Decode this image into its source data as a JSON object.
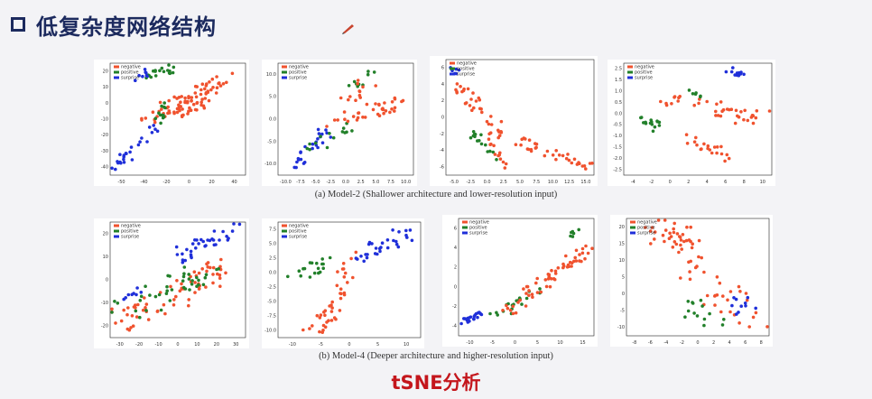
{
  "slide": {
    "title": "低复杂度网络结构",
    "caption_a": "(a) Model-2 (Shallower architecture and lower-resolution input)",
    "caption_b": "(b) Model-4 (Deeper architecture and higher-resolution input)",
    "footer": "tSNE分析",
    "title_icon": "square-bullet-icon",
    "annotation_icon": "pen-icon",
    "colors": {
      "title": "#1c2a5e",
      "footer": "#c4161c",
      "negative": "#f0522e",
      "positive": "#22802a",
      "surprise": "#1f2fd9"
    }
  },
  "chart_data": [
    {
      "type": "scatter",
      "row": "a",
      "legend": [
        "negative",
        "positive",
        "surprise"
      ],
      "legend_position": "top-left",
      "xticks": [
        "-50",
        "-40",
        "-20",
        "0",
        "20",
        "40"
      ],
      "yticks": [
        "20",
        "10",
        "0",
        "-10",
        "-20",
        "-30",
        "-40"
      ],
      "xlim": [
        -55,
        50
      ],
      "ylim": [
        -45,
        25
      ],
      "clusters": [
        {
          "series": "negative",
          "n": 60,
          "x0": -28,
          "y0": -10,
          "x1": 42,
          "y1": 18,
          "spread": 6,
          "seed": 11
        },
        {
          "series": "negative",
          "n": 30,
          "x0": -10,
          "y0": -5,
          "x1": 20,
          "y1": 0,
          "spread": 7,
          "seed": 12
        },
        {
          "series": "positive",
          "n": 18,
          "x0": -25,
          "y0": 18,
          "x1": -5,
          "y1": 22,
          "spread": 4,
          "seed": 13
        },
        {
          "series": "positive",
          "n": 12,
          "x0": -20,
          "y0": -15,
          "x1": -10,
          "y1": 0,
          "spread": 4,
          "seed": 14
        },
        {
          "series": "surprise",
          "n": 25,
          "x0": -50,
          "y0": -40,
          "x1": -20,
          "y1": -15,
          "spread": 4,
          "seed": 15
        },
        {
          "series": "surprise",
          "n": 8,
          "x0": -35,
          "y0": 15,
          "x1": -25,
          "y1": 20,
          "spread": 3,
          "seed": 16
        }
      ]
    },
    {
      "type": "scatter",
      "row": "a",
      "legend": [
        "negative",
        "positive",
        "surprise"
      ],
      "legend_position": "top-left",
      "xticks": [
        "-10.0",
        "-7.5",
        "-5.0",
        "-2.5",
        "0.0",
        "2.5",
        "5.0",
        "7.5",
        "10.0"
      ],
      "yticks": [
        "10.0",
        "5.0",
        "0.0",
        "-5.0",
        "-10.0"
      ],
      "xlim": [
        -11,
        11
      ],
      "ylim": [
        -11,
        12
      ],
      "clusters": [
        {
          "series": "surprise",
          "n": 25,
          "x0": -8,
          "y0": -9,
          "x1": -3,
          "y1": -2,
          "spread": 1.2,
          "seed": 21
        },
        {
          "series": "positive",
          "n": 14,
          "x0": -5,
          "y0": -5,
          "x1": 0,
          "y1": 0,
          "spread": 1.5,
          "seed": 22
        },
        {
          "series": "negative",
          "n": 35,
          "x0": -2,
          "y0": 0,
          "x1": 9,
          "y1": 4,
          "spread": 1.5,
          "seed": 23
        },
        {
          "series": "positive",
          "n": 10,
          "x0": 1,
          "y0": 7,
          "x1": 4,
          "y1": 10,
          "spread": 1.2,
          "seed": 24
        },
        {
          "series": "negative",
          "n": 12,
          "x0": 0,
          "y0": 4,
          "x1": 4,
          "y1": 8,
          "spread": 1.3,
          "seed": 25
        }
      ]
    },
    {
      "type": "scatter",
      "row": "a",
      "legend": [
        "negative",
        "positive",
        "surprise"
      ],
      "legend_position": "top-left",
      "xticks": [
        "-5.0",
        "-2.5",
        "0.0",
        "2.5",
        "5.0",
        "7.5",
        "10.0",
        "12.5",
        "15.0"
      ],
      "yticks": [
        "6",
        "4",
        "2",
        "0",
        "-2",
        "-4",
        "-6"
      ],
      "xlim": [
        -6,
        16
      ],
      "ylim": [
        -7,
        7
      ],
      "clusters": [
        {
          "series": "surprise",
          "n": 6,
          "x0": -5,
          "y0": 6,
          "x1": -4,
          "y1": 5,
          "spread": 0.5,
          "seed": 31
        },
        {
          "series": "negative",
          "n": 30,
          "x0": -4,
          "y0": 4,
          "x1": 2,
          "y1": -2,
          "spread": 1.2,
          "seed": 32
        },
        {
          "series": "negative",
          "n": 40,
          "x0": 2,
          "y0": -2,
          "x1": 15,
          "y1": -6,
          "spread": 1.0,
          "seed": 33
        },
        {
          "series": "positive",
          "n": 15,
          "x0": -2,
          "y0": -2,
          "x1": 2,
          "y1": -5,
          "spread": 0.8,
          "seed": 34
        },
        {
          "series": "negative",
          "n": 12,
          "x0": 1,
          "y0": -3,
          "x1": 3,
          "y1": -6,
          "spread": 0.8,
          "seed": 35
        }
      ]
    },
    {
      "type": "scatter",
      "row": "a",
      "legend": [
        "negative",
        "positive",
        "surprise"
      ],
      "legend_position": "top-left",
      "xticks": [
        "-4",
        "-2",
        "0",
        "2",
        "4",
        "6",
        "8",
        "10"
      ],
      "yticks": [
        "2.5",
        "1.5",
        "1.0",
        "0.5",
        "0.0",
        "-0.5",
        "-1.0",
        "-1.5",
        "-2.0",
        "-2.5"
      ],
      "xlim": [
        -5,
        11
      ],
      "ylim": [
        -3,
        3
      ],
      "clusters": [
        {
          "series": "surprise",
          "n": 12,
          "x0": 6,
          "y0": 2.7,
          "x1": 8,
          "y1": 2.4,
          "spread": 0.5,
          "seed": 41
        },
        {
          "series": "negative",
          "n": 40,
          "x0": 0,
          "y0": 1,
          "x1": 10,
          "y1": 0,
          "spread": 1.3,
          "seed": 42
        },
        {
          "series": "positive",
          "n": 15,
          "x0": -3,
          "y0": 0,
          "x1": -1,
          "y1": -0.5,
          "spread": 0.6,
          "seed": 43
        },
        {
          "series": "negative",
          "n": 20,
          "x0": 2,
          "y0": -1,
          "x1": 7,
          "y1": -2.3,
          "spread": 0.8,
          "seed": 44
        },
        {
          "series": "positive",
          "n": 6,
          "x0": 2,
          "y0": 1.5,
          "x1": 4,
          "y1": 1.2,
          "spread": 0.6,
          "seed": 45
        }
      ]
    },
    {
      "type": "scatter",
      "row": "b",
      "legend": [
        "negative",
        "positive",
        "surprise"
      ],
      "legend_position": "top-left",
      "xticks": [
        "-30",
        "-20",
        "-10",
        "0",
        "10",
        "20",
        "30"
      ],
      "yticks": [
        "20",
        "10",
        "0",
        "-10",
        "-20"
      ],
      "xlim": [
        -35,
        35
      ],
      "ylim": [
        -25,
        25
      ],
      "clusters": [
        {
          "series": "negative",
          "n": 70,
          "x0": -30,
          "y0": -18,
          "x1": 25,
          "y1": 5,
          "spread": 8,
          "seed": 51
        },
        {
          "series": "positive",
          "n": 40,
          "x0": -30,
          "y0": -15,
          "x1": 20,
          "y1": 5,
          "spread": 8,
          "seed": 52
        },
        {
          "series": "surprise",
          "n": 35,
          "x0": 0,
          "y0": 10,
          "x1": 30,
          "y1": 22,
          "spread": 5,
          "seed": 53
        },
        {
          "series": "surprise",
          "n": 8,
          "x0": -30,
          "y0": -10,
          "x1": -20,
          "y1": -5,
          "spread": 3,
          "seed": 54
        }
      ]
    },
    {
      "type": "scatter",
      "row": "b",
      "legend": [
        "negative",
        "positive",
        "surprise"
      ],
      "legend_position": "top-left",
      "xticks": [
        "-10",
        "-5",
        "0",
        "5",
        "10"
      ],
      "yticks": [
        "7.5",
        "5.0",
        "2.5",
        "0.0",
        "-2.5",
        "-5.0",
        "-7.5",
        "-10.0"
      ],
      "xlim": [
        -12,
        13
      ],
      "ylim": [
        -11,
        9
      ],
      "clusters": [
        {
          "series": "positive",
          "n": 18,
          "x0": -10,
          "y0": -1,
          "x1": -3,
          "y1": 2,
          "spread": 1.5,
          "seed": 61
        },
        {
          "series": "negative",
          "n": 30,
          "x0": -6,
          "y0": -9,
          "x1": 2,
          "y1": 4,
          "spread": 1.8,
          "seed": 62
        },
        {
          "series": "surprise",
          "n": 30,
          "x0": 2,
          "y0": 3,
          "x1": 11,
          "y1": 7,
          "spread": 1.6,
          "seed": 63
        },
        {
          "series": "negative",
          "n": 12,
          "x0": -4,
          "y0": -10,
          "x1": -2,
          "y1": -6,
          "spread": 1.0,
          "seed": 64
        }
      ]
    },
    {
      "type": "scatter",
      "row": "b",
      "legend": [
        "negative",
        "positive",
        "surprise"
      ],
      "legend_position": "top-left",
      "xticks": [
        "-10",
        "-5",
        "0",
        "5",
        "10",
        "15"
      ],
      "yticks": [
        "6",
        "4",
        "2",
        "0",
        "-2",
        "-4"
      ],
      "xlim": [
        -12,
        16
      ],
      "ylim": [
        -5,
        7
      ],
      "clusters": [
        {
          "series": "surprise",
          "n": 22,
          "x0": -11,
          "y0": -3.5,
          "x1": -7,
          "y1": -2.8,
          "spread": 0.7,
          "seed": 71
        },
        {
          "series": "positive",
          "n": 20,
          "x0": -5,
          "y0": -3,
          "x1": 5,
          "y1": 0,
          "spread": 1.3,
          "seed": 72
        },
        {
          "series": "negative",
          "n": 60,
          "x0": -3,
          "y0": -3,
          "x1": 15,
          "y1": 4,
          "spread": 1.5,
          "seed": 73
        },
        {
          "series": "positive",
          "n": 6,
          "x0": 10,
          "y0": 5,
          "x1": 13,
          "y1": 6,
          "spread": 0.7,
          "seed": 74
        }
      ]
    },
    {
      "type": "scatter",
      "row": "b",
      "legend": [
        "negative",
        "positive",
        "surprise"
      ],
      "legend_position": "top-left",
      "xticks": [
        "-8",
        "-6",
        "-4",
        "-2",
        "0",
        "2",
        "4",
        "6",
        "8"
      ],
      "yticks": [
        "20",
        "15",
        "10",
        "5",
        "0",
        "-5",
        "-10"
      ],
      "xlim": [
        -9,
        9
      ],
      "ylim": [
        -12,
        22
      ],
      "clusters": [
        {
          "series": "negative",
          "n": 50,
          "x0": -5,
          "y0": 20,
          "x1": 7,
          "y1": -8,
          "spread": 2.5,
          "seed": 81
        },
        {
          "series": "negative",
          "n": 20,
          "x0": -2,
          "y0": 14,
          "x1": -6,
          "y1": 18,
          "spread": 1.5,
          "seed": 82
        },
        {
          "series": "positive",
          "n": 14,
          "x0": -2,
          "y0": -2,
          "x1": 4,
          "y1": -8,
          "spread": 1.6,
          "seed": 83
        },
        {
          "series": "surprise",
          "n": 10,
          "x0": 4,
          "y0": -2,
          "x1": 8,
          "y1": -6,
          "spread": 1.5,
          "seed": 84
        }
      ]
    }
  ]
}
